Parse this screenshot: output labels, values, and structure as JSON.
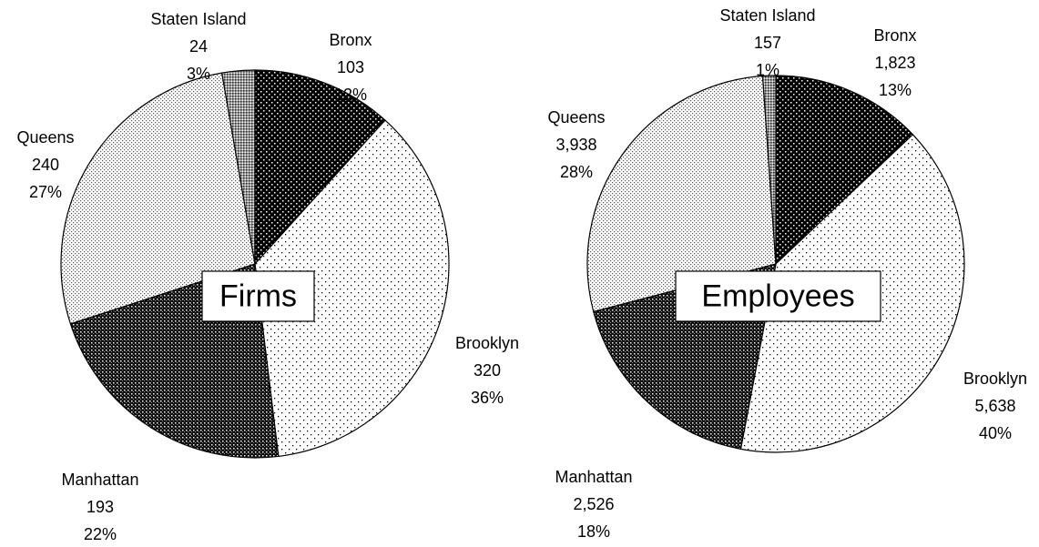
{
  "chart_data": [
    {
      "type": "pie",
      "title": "Firms",
      "categories": [
        "Bronx",
        "Brooklyn",
        "Manhattan",
        "Queens",
        "Staten Island"
      ],
      "values": [
        103,
        320,
        193,
        240,
        24
      ],
      "percents": [
        {
          "value": 12,
          "label": "12%"
        },
        {
          "value": 36,
          "label": "36%"
        },
        {
          "value": 22,
          "label": "22%"
        },
        {
          "value": 27,
          "label": "27%"
        },
        {
          "value": 3,
          "label": "3%"
        }
      ]
    },
    {
      "type": "pie",
      "title": "Employees",
      "categories": [
        "Bronx",
        "Brooklyn",
        "Manhattan",
        "Queens",
        "Staten Island"
      ],
      "values": [
        1823,
        5638,
        2526,
        3938,
        157
      ],
      "value_labels": [
        "1,823",
        "5,638",
        "2,526",
        "3,938",
        "157"
      ],
      "percents": [
        {
          "value": 13,
          "label": "13%"
        },
        {
          "value": 40,
          "label": "40%"
        },
        {
          "value": 18,
          "label": "18%"
        },
        {
          "value": 28,
          "label": "28%"
        },
        {
          "value": 1,
          "label": "1%"
        }
      ]
    }
  ]
}
